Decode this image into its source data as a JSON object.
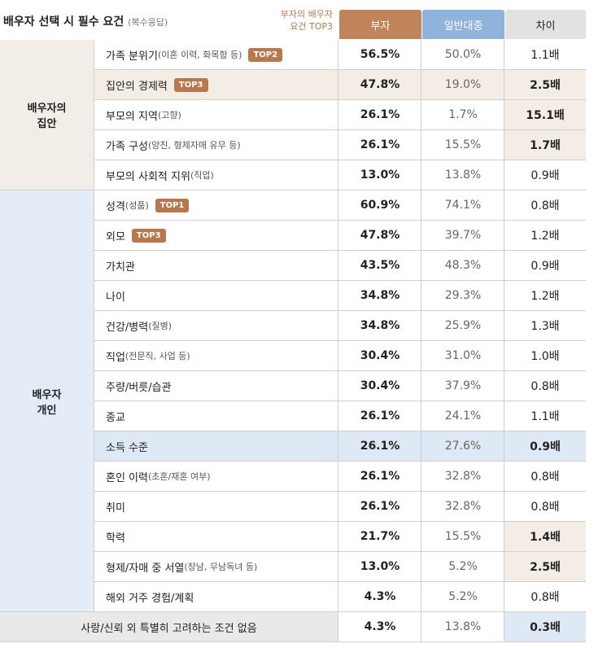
{
  "header": {
    "title": "배우자 선택 시 필수 요건",
    "subtitle": "(복수응답)",
    "note": "부자의 배우자\n요건 TOP3"
  },
  "table": {
    "columns": [
      "부자",
      "일반대중",
      "차이"
    ],
    "groups": [
      {
        "label": "배우자의\n집안",
        "rows": [
          {
            "label": "가족 분위기",
            "detail": "(이혼 이력, 화목함 등)",
            "badge": "TOP2",
            "values": [
              "56.5%",
              "50.0%",
              "1.1배"
            ]
          },
          {
            "label": "집안의 경제력",
            "badge": "TOP3",
            "values": [
              "47.8%",
              "19.0%",
              "2.5배"
            ]
          },
          {
            "label": "부모의 지역",
            "detail": "(고향)",
            "values": [
              "26.1%",
              "1.7%",
              "15.1배"
            ]
          },
          {
            "label": "가족 구성",
            "detail": "(양친, 형제자매 유무 등)",
            "values": [
              "26.1%",
              "15.5%",
              "1.7배"
            ]
          },
          {
            "label": "부모의 사회적 지위",
            "detail": "(직업)",
            "values": [
              "13.0%",
              "13.8%",
              "0.9배"
            ]
          }
        ]
      },
      {
        "label": "배우자\n개인",
        "rows": [
          {
            "label": "성격",
            "detail": "(성품)",
            "badge": "TOP1",
            "values": [
              "60.9%",
              "74.1%",
              "0.8배"
            ]
          },
          {
            "label": "외모",
            "badge": "TOP3",
            "values": [
              "47.8%",
              "39.7%",
              "1.2배"
            ]
          },
          {
            "label": "가치관",
            "values": [
              "43.5%",
              "48.3%",
              "0.9배"
            ]
          },
          {
            "label": "나이",
            "values": [
              "34.8%",
              "29.3%",
              "1.2배"
            ]
          },
          {
            "label": "건강/병력",
            "detail": "(질병)",
            "values": [
              "34.8%",
              "25.9%",
              "1.3배"
            ]
          },
          {
            "label": "직업",
            "detail": "(전문직, 사업 등)",
            "values": [
              "30.4%",
              "31.0%",
              "1.0배"
            ]
          },
          {
            "label": "주량/버릇/습관",
            "values": [
              "30.4%",
              "37.9%",
              "0.8배"
            ]
          },
          {
            "label": "종교",
            "values": [
              "26.1%",
              "24.1%",
              "1.1배"
            ]
          },
          {
            "label": "소득 수준",
            "values": [
              "26.1%",
              "27.6%",
              "0.9배"
            ]
          },
          {
            "label": "혼인 이력",
            "detail": "(초혼/재혼 여부)",
            "values": [
              "26.1%",
              "32.8%",
              "0.8배"
            ]
          },
          {
            "label": "취미",
            "values": [
              "26.1%",
              "32.8%",
              "0.8배"
            ]
          },
          {
            "label": "학력",
            "values": [
              "21.7%",
              "15.5%",
              "1.4배"
            ]
          },
          {
            "label": "형제/자매 중 서열",
            "detail": "(장남, 무남독녀 등)",
            "values": [
              "13.0%",
              "5.2%",
              "2.5배"
            ]
          },
          {
            "label": "해외 거주 경험/계획",
            "values": [
              "4.3%",
              "5.2%",
              "0.8배"
            ]
          }
        ]
      }
    ],
    "footer_row": {
      "label": "사랑/신뢰 외 특별히 고려하는 조건 없음",
      "values": [
        "4.3%",
        "13.8%",
        "0.3배"
      ]
    }
  }
}
